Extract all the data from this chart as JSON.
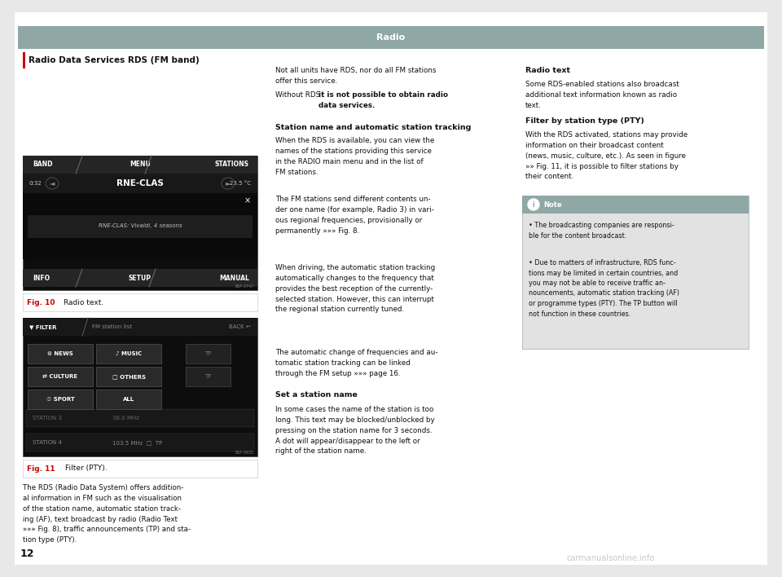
{
  "page_bg": "#e8e8e8",
  "content_bg": "#ffffff",
  "header_bg": "#8fa8a5",
  "header_text": "Radio",
  "header_text_color": "#ffffff",
  "red_accent": "#cc0000",
  "section_title": "Radio Data Services RDS (FM band)",
  "page_number": "12",
  "screen_dark": "#111111",
  "screen_mid": "#222222",
  "screen_bar": "#2a2a2a",
  "note_bg": "#e0e0e0",
  "note_header_bg": "#8fa8a5",
  "watermark_color": "#bbbbbb"
}
